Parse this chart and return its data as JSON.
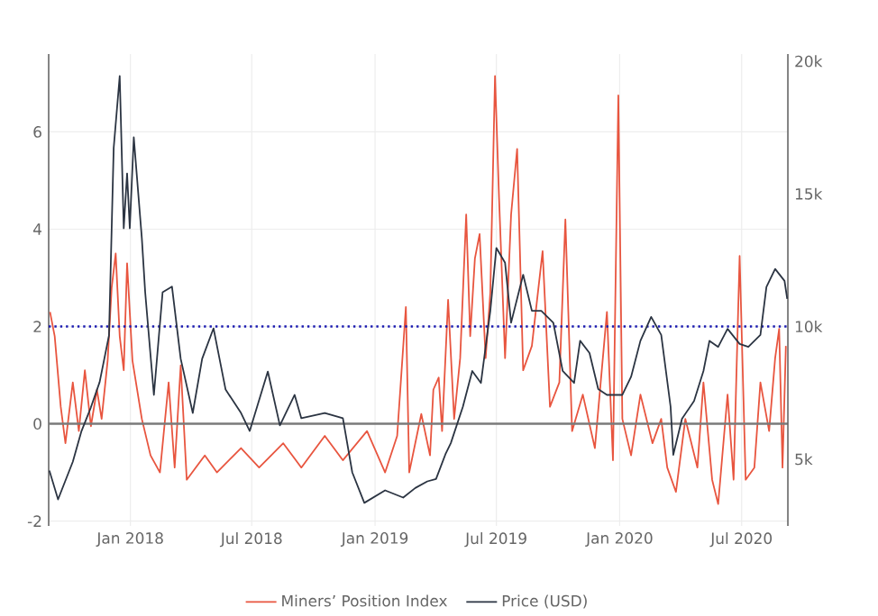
{
  "chart_data": {
    "type": "line",
    "xlim": [
      "2017-09-01",
      "2020-09-08"
    ],
    "xticks": [
      {
        "value": "2018-01-01",
        "label": "Jan 2018"
      },
      {
        "value": "2018-07-01",
        "label": "Jul 2018"
      },
      {
        "value": "2019-01-01",
        "label": "Jan 2019"
      },
      {
        "value": "2019-07-01",
        "label": "Jul 2019"
      },
      {
        "value": "2020-01-01",
        "label": "Jan 2020"
      },
      {
        "value": "2020-07-01",
        "label": "Jul 2020"
      }
    ],
    "ylim": [
      -2.1,
      7.6
    ],
    "yticks": [
      -2,
      0,
      2,
      4,
      6
    ],
    "y2lim": [
      2480,
      20270
    ],
    "y2ticks": [
      {
        "value": 5000,
        "label": "5k"
      },
      {
        "value": 10000,
        "label": "10k"
      },
      {
        "value": 15000,
        "label": "15k"
      },
      {
        "value": 20000,
        "label": "20k"
      }
    ],
    "grid": true,
    "legend": "bottom",
    "line_style": "solid",
    "marker": "none",
    "ref_lines": [
      {
        "axis": "y",
        "value": 2,
        "color": "#1a1ab0",
        "line_style": "dotted"
      },
      {
        "axis": "y",
        "value": 0,
        "color": "#7a7a7a",
        "line_style": "solid"
      }
    ],
    "series": [
      {
        "name": "Miners’ Position Index",
        "color": "#e8553f",
        "x": [
          "2017-09-03",
          "2017-09-10",
          "2017-09-19",
          "2017-09-26",
          "2017-10-07",
          "2017-10-16",
          "2017-10-25",
          "2017-11-03",
          "2017-11-12",
          "2017-11-19",
          "2017-11-28",
          "2017-12-04",
          "2017-12-10",
          "2017-12-16",
          "2017-12-22",
          "2017-12-27",
          "2018-01-04",
          "2018-01-18",
          "2018-01-31",
          "2018-02-14",
          "2018-02-27",
          "2018-03-08",
          "2018-03-17",
          "2018-03-26",
          "2018-04-22",
          "2018-05-10",
          "2018-06-15",
          "2018-07-12",
          "2018-08-17",
          "2018-09-13",
          "2018-10-18",
          "2018-11-14",
          "2018-12-20",
          "2019-01-16",
          "2019-02-03",
          "2019-02-16",
          "2019-02-21",
          "2019-03-11",
          "2019-03-24",
          "2019-03-29",
          "2019-04-06",
          "2019-04-11",
          "2019-04-20",
          "2019-04-29",
          "2019-05-08",
          "2019-05-17",
          "2019-05-23",
          "2019-05-30",
          "2019-06-06",
          "2019-06-15",
          "2019-06-22",
          "2019-06-29",
          "2019-07-05",
          "2019-07-14",
          "2019-07-23",
          "2019-08-01",
          "2019-08-10",
          "2019-08-23",
          "2019-09-08",
          "2019-09-19",
          "2019-10-03",
          "2019-10-12",
          "2019-10-22",
          "2019-11-07",
          "2019-11-25",
          "2019-12-13",
          "2019-12-22",
          "2019-12-30",
          "2020-01-05",
          "2020-01-18",
          "2020-02-01",
          "2020-02-19",
          "2020-03-03",
          "2020-03-12",
          "2020-03-25",
          "2020-04-08",
          "2020-04-26",
          "2020-05-05",
          "2020-05-18",
          "2020-05-27",
          "2020-06-10",
          "2020-06-19",
          "2020-06-28",
          "2020-07-07",
          "2020-07-20",
          "2020-07-29",
          "2020-08-11",
          "2020-08-20",
          "2020-08-26",
          "2020-08-31",
          "2020-09-05"
        ],
        "values": [
          2.3,
          1.8,
          0.35,
          -0.4,
          0.85,
          -0.15,
          1.1,
          -0.05,
          0.7,
          0.1,
          1.3,
          2.8,
          3.5,
          1.8,
          1.1,
          3.3,
          1.3,
          0.1,
          -0.65,
          -1.0,
          0.85,
          -0.9,
          1.2,
          -1.15,
          -0.65,
          -1.0,
          -0.5,
          -0.9,
          -0.4,
          -0.9,
          -0.25,
          -0.75,
          -0.15,
          -1.0,
          -0.25,
          2.4,
          -1.0,
          0.2,
          -0.65,
          0.7,
          0.95,
          -0.15,
          2.55,
          0.1,
          1.35,
          4.3,
          1.8,
          3.4,
          3.9,
          1.35,
          2.7,
          7.15,
          4.65,
          1.35,
          4.3,
          5.65,
          1.1,
          1.6,
          3.55,
          0.35,
          0.85,
          4.2,
          -0.15,
          0.6,
          -0.5,
          2.3,
          -0.75,
          6.75,
          0.1,
          -0.65,
          0.6,
          -0.4,
          0.1,
          -0.9,
          -1.4,
          0.1,
          -0.9,
          0.85,
          -1.15,
          -1.65,
          0.6,
          -1.15,
          3.45,
          -1.15,
          -0.9,
          0.85,
          -0.15,
          1.35,
          1.95,
          -0.9,
          1.6
        ]
      },
      {
        "name": "Price (USD)",
        "color": "#2b3442",
        "axis": "y2",
        "x": [
          "2017-09-02",
          "2017-09-15",
          "2017-10-07",
          "2017-10-20",
          "2017-11-03",
          "2017-11-16",
          "2017-11-30",
          "2017-12-07",
          "2017-12-16",
          "2017-12-22",
          "2017-12-27",
          "2017-12-31",
          "2018-01-06",
          "2018-01-18",
          "2018-01-23",
          "2018-02-05",
          "2018-02-18",
          "2018-03-04",
          "2018-03-17",
          "2018-04-04",
          "2018-04-18",
          "2018-05-05",
          "2018-05-23",
          "2018-06-15",
          "2018-06-28",
          "2018-07-25",
          "2018-08-12",
          "2018-09-03",
          "2018-09-13",
          "2018-10-18",
          "2018-11-14",
          "2018-11-28",
          "2018-12-16",
          "2019-01-16",
          "2019-02-12",
          "2019-03-02",
          "2019-03-20",
          "2019-04-02",
          "2019-04-16",
          "2019-04-24",
          "2019-05-12",
          "2019-05-26",
          "2019-06-08",
          "2019-06-22",
          "2019-07-01",
          "2019-07-14",
          "2019-07-23",
          "2019-08-10",
          "2019-08-23",
          "2019-09-06",
          "2019-09-24",
          "2019-10-08",
          "2019-10-25",
          "2019-11-03",
          "2019-11-17",
          "2019-11-30",
          "2019-12-13",
          "2020-01-05",
          "2020-01-18",
          "2020-02-01",
          "2020-02-17",
          "2020-03-03",
          "2020-03-17",
          "2020-03-21",
          "2020-04-03",
          "2020-04-21",
          "2020-05-05",
          "2020-05-14",
          "2020-05-27",
          "2020-06-10",
          "2020-06-28",
          "2020-07-11",
          "2020-07-29",
          "2020-08-07",
          "2020-08-20",
          "2020-09-03",
          "2020-09-07"
        ],
        "values": [
          4570,
          3480,
          4900,
          6060,
          6950,
          7900,
          9660,
          16720,
          19440,
          13700,
          15770,
          13700,
          17130,
          13330,
          11290,
          7420,
          11290,
          11500,
          8780,
          6740,
          8780,
          9930,
          7620,
          6740,
          6060,
          8300,
          6270,
          7420,
          6540,
          6740,
          6540,
          4500,
          3350,
          3820,
          3550,
          3910,
          4160,
          4250,
          5180,
          5600,
          6970,
          8320,
          7870,
          10590,
          12960,
          12400,
          10140,
          11950,
          10590,
          10590,
          10140,
          8320,
          7870,
          9460,
          9000,
          7640,
          7420,
          7420,
          8100,
          9460,
          10360,
          9680,
          6970,
          5160,
          6520,
          7190,
          8320,
          9460,
          9230,
          9910,
          9340,
          9230,
          9680,
          11490,
          12170,
          11720,
          11040
        ]
      }
    ]
  }
}
